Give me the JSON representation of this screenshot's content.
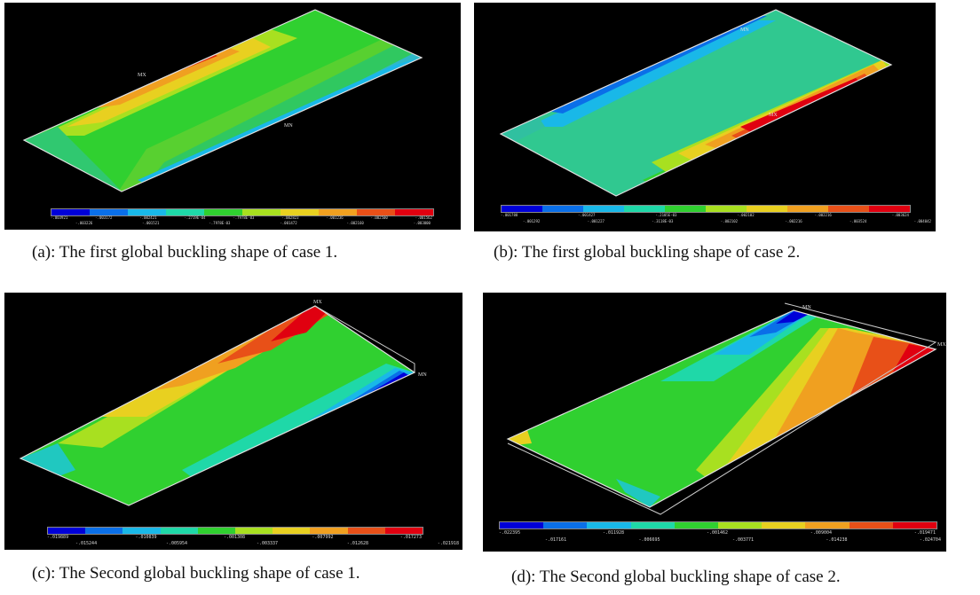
{
  "legend_colors": [
    "#0000d8",
    "#0a6fe8",
    "#19b8e8",
    "#1fd8a8",
    "#30d030",
    "#a8e020",
    "#e8d020",
    "#f0a020",
    "#e85018",
    "#e00010"
  ],
  "panels": [
    {
      "caption": "(a): The first global buckling shape of case 1.",
      "ticks_top": [
        "-.003921",
        "-.003172",
        "-.002421",
        "-.2719E-04",
        "-.7978E-03",
        "-.002823",
        "-.001236",
        "-.002500",
        "-.001562"
      ],
      "ticks_bottom": [
        "-.003226",
        "-.001521",
        "-.7978E-03",
        "-.001472",
        "-.002160",
        "-.003000"
      ],
      "labels": [
        "MX",
        "MN"
      ]
    },
    {
      "caption": "(b): The first global buckling shape of case 2.",
      "ticks_top": [
        "-.001788",
        "-.001427",
        "-.2105E-03",
        "-.002102",
        "-.002216",
        "-.003624"
      ],
      "ticks_bottom": [
        "-.001292",
        "-.001227",
        "-.3118E-03",
        "-.002102",
        "-.002216",
        "-.003524",
        "-.004042"
      ],
      "labels": [
        "MN",
        "MX"
      ]
    },
    {
      "caption": "(c):  The Second global buckling shape of case 1.",
      "ticks_top": [
        "-.019889",
        "-.010839",
        "-.001308",
        "-.007992",
        "-.017273"
      ],
      "ticks_bottom": [
        "-.015244",
        "-.005954",
        "-.003337",
        "-.012628",
        "-.021918"
      ],
      "labels": [
        "MX",
        "MN"
      ]
    },
    {
      "caption": "(d): The Second global buckling shape of case 2.",
      "ticks_top": [
        "-.022395",
        "-.011928",
        "-.001462",
        "-.009004",
        "-.019471"
      ],
      "ticks_bottom": [
        "-.017161",
        "-.006695",
        "-.003771",
        "-.014238",
        "-.024704"
      ],
      "labels": [
        "MN",
        "MX"
      ]
    }
  ]
}
